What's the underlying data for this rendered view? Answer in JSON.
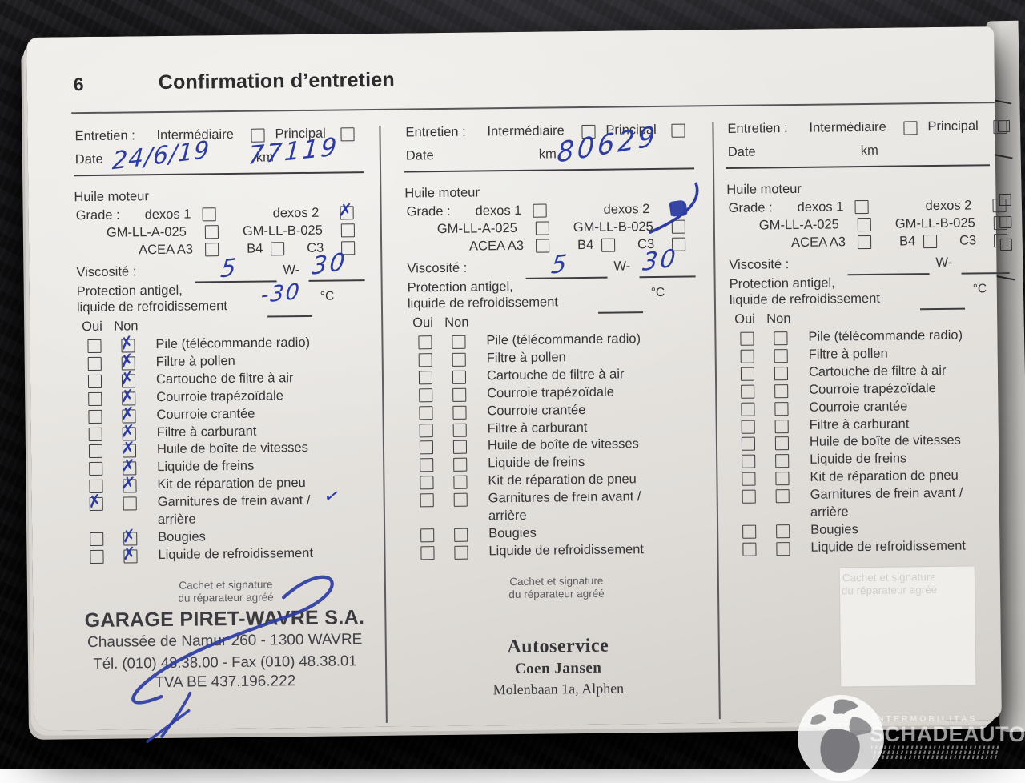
{
  "page": {
    "number": "6",
    "title": "Confirmation d’entretien"
  },
  "labels": {
    "entretien": "Entretien :",
    "intermediaire": "Intermédiaire",
    "principal": "Principal",
    "date": "Date",
    "km": "km",
    "huile_moteur": "Huile moteur",
    "grade": "Grade :",
    "dexos1": "dexos 1",
    "dexos2": "dexos 2",
    "gm_a": "GM-LL-A-025",
    "gm_b": "GM-LL-B-025",
    "acea_a3": "ACEA A3",
    "b4": "B4",
    "c3": "C3",
    "viscosite": "Viscosité :",
    "w_prefix": "W-",
    "protection_line1": "Protection antigel,",
    "protection_line2": "liquide de refroidissement",
    "celsius": "°C",
    "oui": "Oui",
    "non": "Non",
    "stamp_caption_line1": "Cachet et signature",
    "stamp_caption_line2": "du réparateur agréé"
  },
  "checklist_items": [
    {
      "label": "Pile (télécommande radio)"
    },
    {
      "label": "Filtre à pollen"
    },
    {
      "label": "Cartouche de filtre à air"
    },
    {
      "label": "Courroie trapézoïdale"
    },
    {
      "label": "Courroie crantée"
    },
    {
      "label": "Filtre à carburant"
    },
    {
      "label": "Huile de boîte de vitesses"
    },
    {
      "label": "Liquide de freins"
    },
    {
      "label": "Kit de réparation de pneu"
    },
    {
      "label": "Garnitures de frein avant /",
      "label2": "arrière"
    },
    {
      "label": "Bougies"
    },
    {
      "label": "Liquide de refroidissement"
    }
  ],
  "columns": [
    {
      "date_value": "24/6/19",
      "km_value": "77119",
      "dexos2_mark": "cross",
      "viscosity_first": "5",
      "viscosity_second": "30",
      "antifreeze_temp": "-30",
      "item_marks": [
        "non",
        "non",
        "non",
        "non",
        "non",
        "non",
        "non",
        "non",
        "non",
        "oui",
        "non",
        "non"
      ],
      "garnitures_tick": true,
      "has_signature": true,
      "km_flourish": false,
      "stamp": {
        "variant": "sans",
        "lines": [
          "GARAGE PIRET-WAVRE S.A.",
          "Chaussée de Namur 260 - 1300 WAVRE",
          "Tél. (010) 48.38.00 - Fax (010) 48.38.01",
          "TVA BE 437.196.222"
        ]
      }
    },
    {
      "date_value": "",
      "km_value": "80629",
      "dexos2_mark": "scribble",
      "viscosity_first": "5",
      "viscosity_second": "30",
      "antifreeze_temp": "",
      "item_marks": [
        "",
        "",
        "",
        "",
        "",
        "",
        "",
        "",
        "",
        "",
        "",
        ""
      ],
      "garnitures_tick": false,
      "has_signature": false,
      "km_flourish": true,
      "stamp": {
        "variant": "serif",
        "lines": [
          "Autoservice",
          "Coen Jansen",
          "Molenbaan 1a, Alphen"
        ]
      }
    },
    {
      "date_value": "",
      "km_value": "",
      "dexos2_mark": "",
      "viscosity_first": "",
      "viscosity_second": "",
      "antifreeze_temp": "",
      "item_marks": [
        "",
        "",
        "",
        "",
        "",
        "",
        "",
        "",
        "",
        "",
        "",
        ""
      ],
      "garnitures_tick": false,
      "has_signature": false,
      "km_flourish": false,
      "stamp": {
        "variant": "empty",
        "lines": []
      }
    }
  ],
  "watermark": {
    "small": "INTERMOBILITAS",
    "large": "SCHADEAUTOS.NL"
  },
  "colors": {
    "handwriting_ink": "#2c3ca2",
    "stamp_ink": "#404046",
    "paper": "#e9e7e3",
    "background": "#141416"
  }
}
